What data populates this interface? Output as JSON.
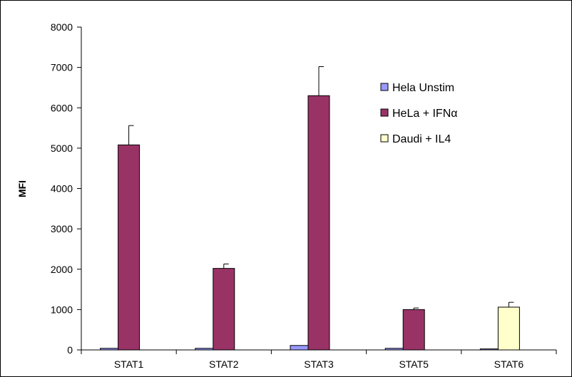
{
  "chart_data": {
    "type": "bar",
    "title": "",
    "xlabel": "",
    "ylabel": "MFI",
    "ylim": [
      0,
      8000
    ],
    "yticks": [
      0,
      1000,
      2000,
      3000,
      4000,
      5000,
      6000,
      7000,
      8000
    ],
    "grid": false,
    "legend_position": "right",
    "categories": [
      "STAT1",
      "STAT2",
      "STAT3",
      "STAT5",
      "STAT6"
    ],
    "series": [
      {
        "name": "Hela Unstim",
        "color": "#9999ff",
        "values": [
          40,
          40,
          110,
          40,
          25
        ],
        "errors": [
          null,
          null,
          null,
          null,
          null
        ]
      },
      {
        "name": "HeLa + IFNα",
        "color": "#993366",
        "values": [
          5080,
          2020,
          6300,
          1000,
          null
        ],
        "errors": [
          480,
          110,
          720,
          40,
          null
        ]
      },
      {
        "name": "Daudi + IL4",
        "color": "#ffffcc",
        "values": [
          null,
          null,
          null,
          null,
          1060
        ],
        "errors": [
          null,
          null,
          null,
          null,
          120
        ]
      }
    ]
  }
}
